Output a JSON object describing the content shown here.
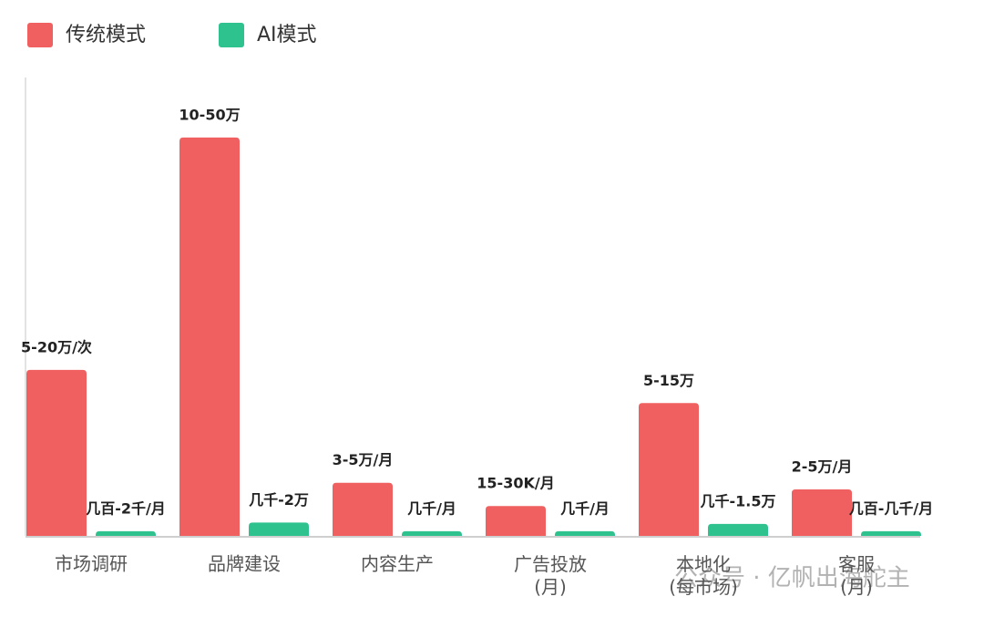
{
  "chart_data": {
    "type": "bar",
    "categories": [
      "市场调研",
      "品牌建设",
      "内容生产",
      "广告投放\n(月)",
      "本地化\n(每市场)",
      "客服\n(月)"
    ],
    "series": [
      {
        "name": "传统模式",
        "color": "#f06060",
        "values": [
          12.5,
          30,
          4,
          2.25,
          10,
          3.5
        ],
        "value_labels": [
          "5-20万/次",
          "10-50万",
          "3-5万/月",
          "15-30K/月",
          "5-15万",
          "2-5万/月"
        ]
      },
      {
        "name": "AI模式",
        "color": "#2ec28f",
        "values": [
          0.35,
          1,
          0.35,
          0.35,
          0.9,
          0.35
        ],
        "value_labels": [
          "几百-2千/月",
          "几千-2万",
          "几千/月",
          "几千/月",
          "几千-1.5万",
          "几百-几千/月"
        ]
      }
    ],
    "ylim": [
      0,
      35
    ],
    "watermark": "公众号 · 亿帆出海舵主"
  }
}
